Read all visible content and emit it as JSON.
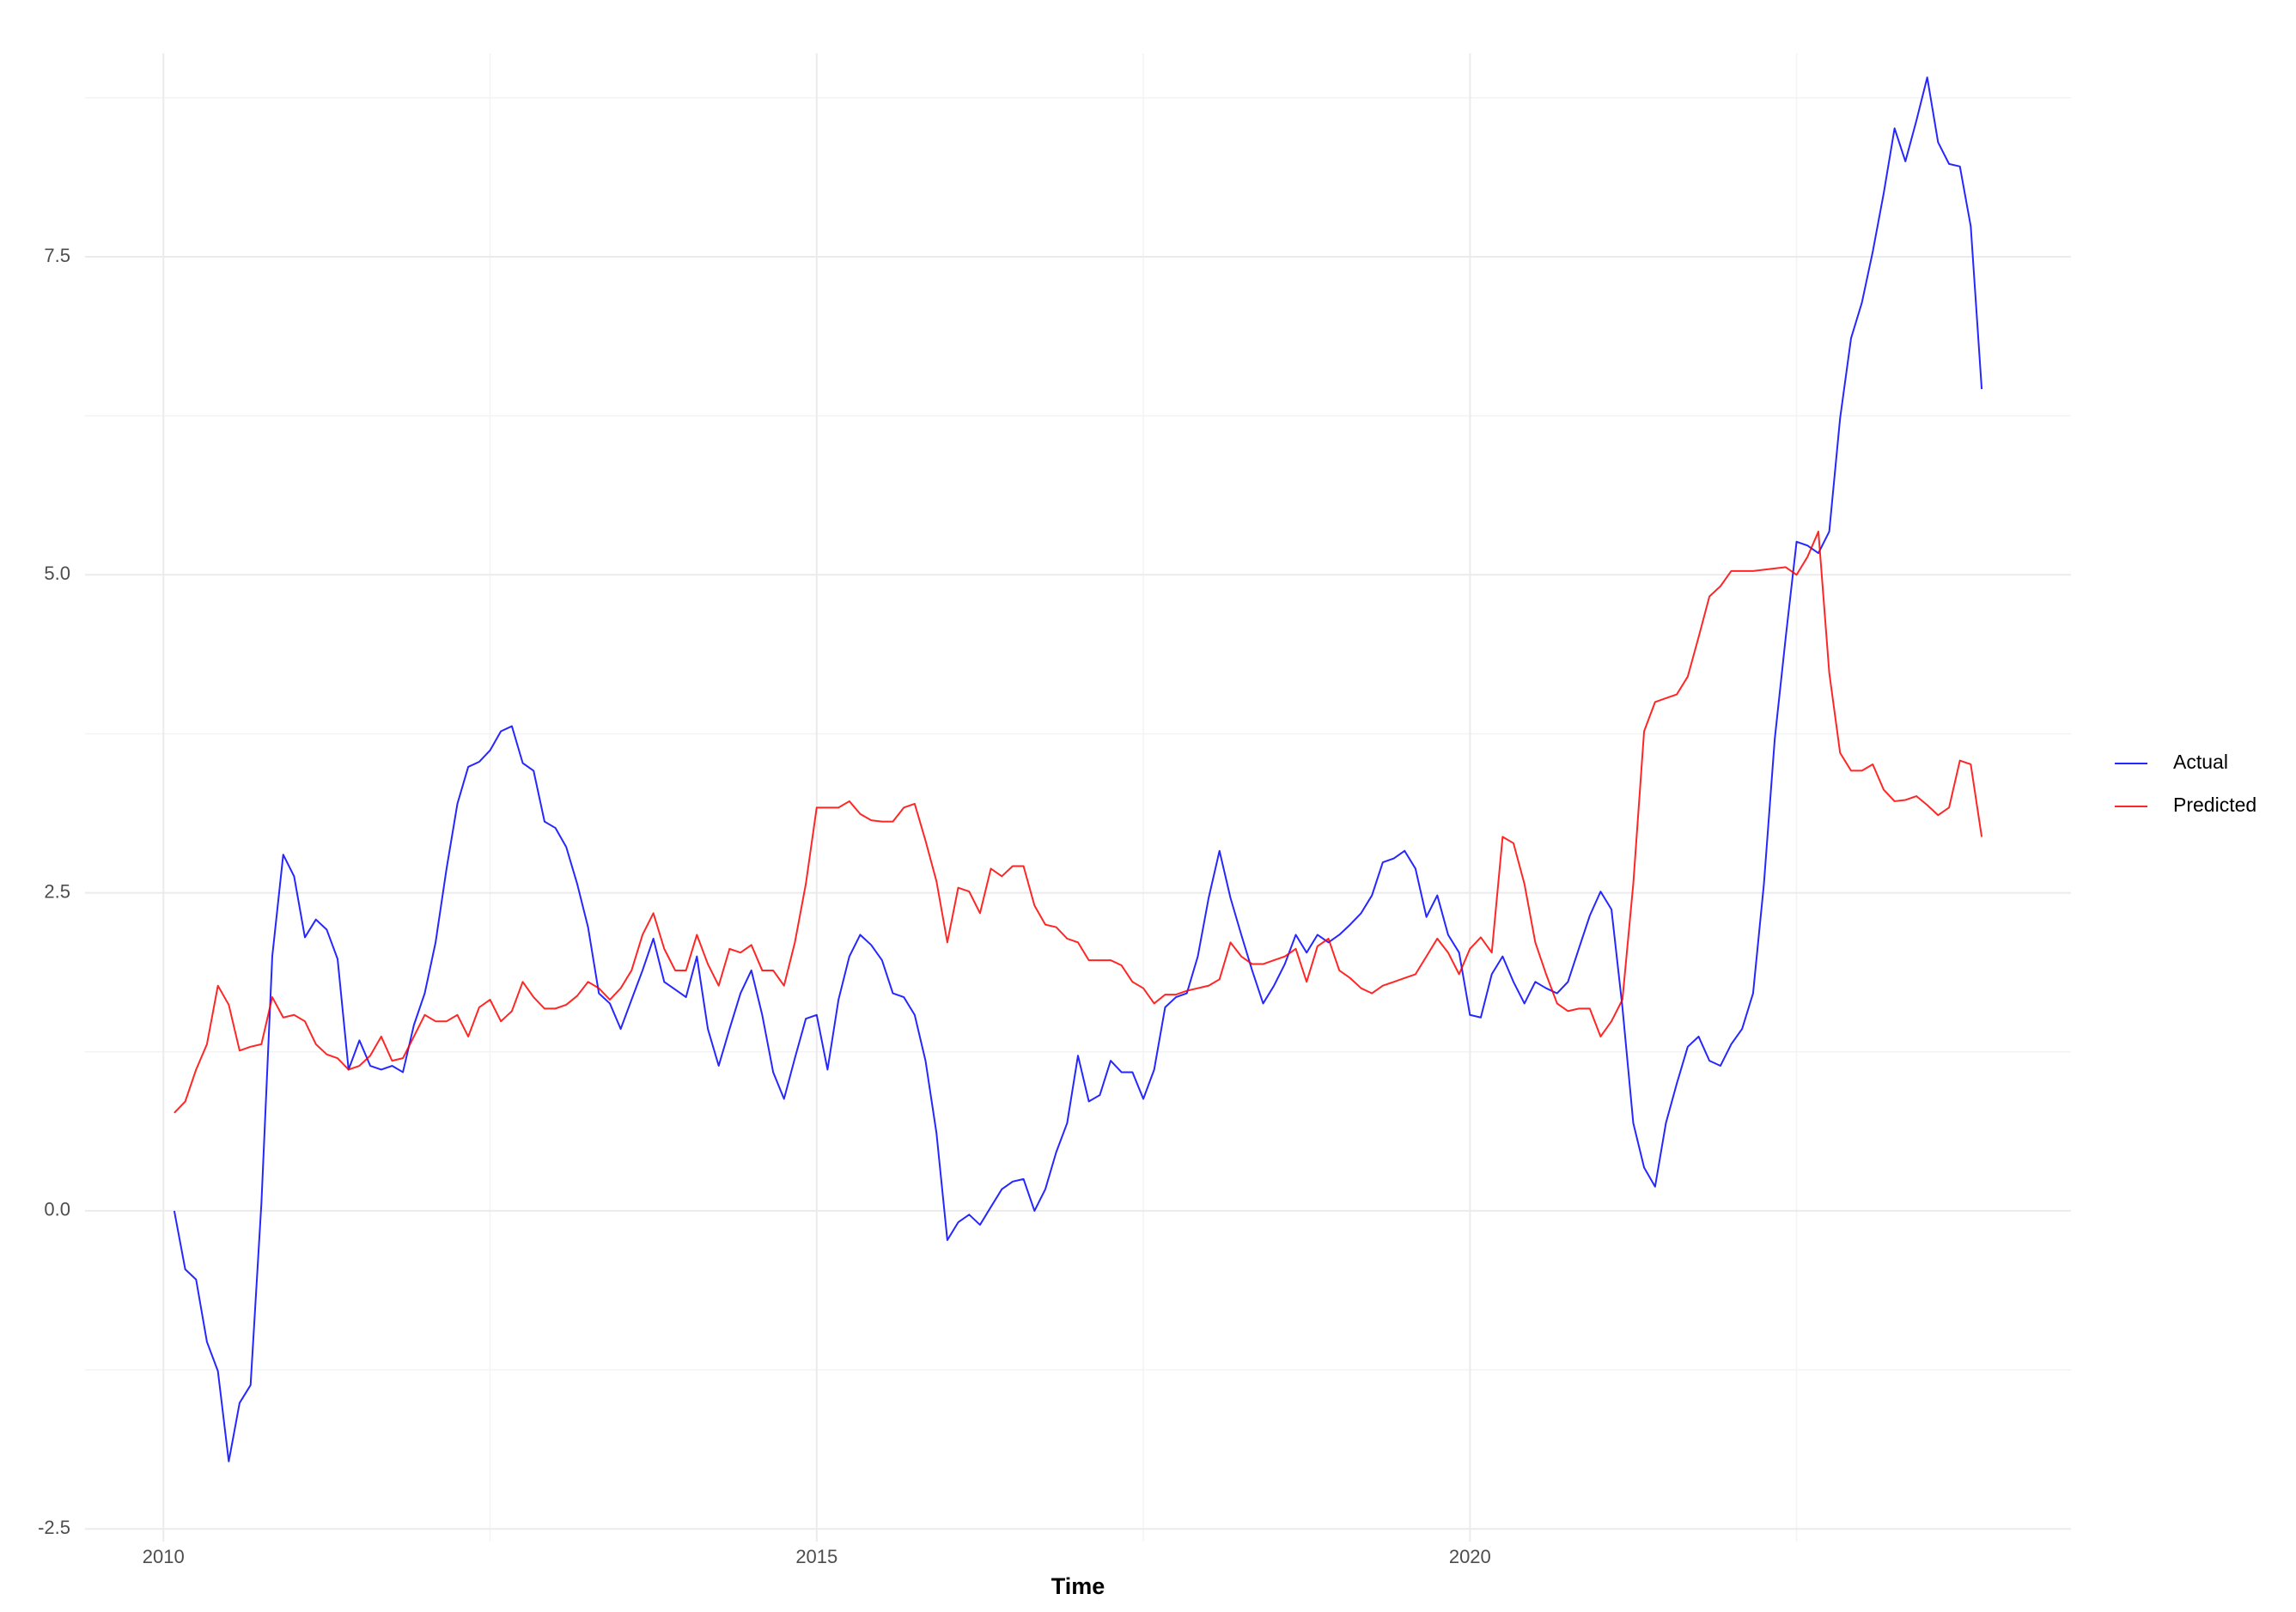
{
  "chart_data": {
    "type": "line",
    "x_label": "Time",
    "xlim": [
      2009.4,
      2024.6
    ],
    "ylim": [
      -2.6,
      9.1
    ],
    "xticks": [
      2010,
      2015,
      2020
    ],
    "yticks": [
      -2.5,
      {
        "value": 0,
        "label": "0.0"
      },
      2.5,
      {
        "value": 5,
        "label": "5.0"
      },
      7.5
    ],
    "x_minor_grid": [
      2012.5,
      2017.5,
      2022.5
    ],
    "y_minor_grid": [
      -1.25,
      1.25,
      3.75,
      6.25,
      8.75
    ],
    "grid": true,
    "legend": "right",
    "x": [
      2010.083,
      2010.167,
      2010.25,
      2010.333,
      2010.417,
      2010.5,
      2010.583,
      2010.667,
      2010.75,
      2010.833,
      2010.917,
      2011.0,
      2011.083,
      2011.167,
      2011.25,
      2011.333,
      2011.417,
      2011.5,
      2011.583,
      2011.667,
      2011.75,
      2011.833,
      2011.917,
      2012.0,
      2012.083,
      2012.167,
      2012.25,
      2012.333,
      2012.417,
      2012.5,
      2012.583,
      2012.667,
      2012.75,
      2012.833,
      2012.917,
      2013.0,
      2013.083,
      2013.167,
      2013.25,
      2013.333,
      2013.417,
      2013.5,
      2013.583,
      2013.667,
      2013.75,
      2013.833,
      2013.917,
      2014.0,
      2014.083,
      2014.167,
      2014.25,
      2014.333,
      2014.417,
      2014.5,
      2014.583,
      2014.667,
      2014.75,
      2014.833,
      2014.917,
      2015.0,
      2015.083,
      2015.167,
      2015.25,
      2015.333,
      2015.417,
      2015.5,
      2015.583,
      2015.667,
      2015.75,
      2015.833,
      2015.917,
      2016.0,
      2016.083,
      2016.167,
      2016.25,
      2016.333,
      2016.417,
      2016.5,
      2016.583,
      2016.667,
      2016.75,
      2016.833,
      2016.917,
      2017.0,
      2017.083,
      2017.167,
      2017.25,
      2017.333,
      2017.417,
      2017.5,
      2017.583,
      2017.667,
      2017.75,
      2017.833,
      2017.917,
      2018.0,
      2018.083,
      2018.167,
      2018.25,
      2018.333,
      2018.417,
      2018.5,
      2018.583,
      2018.667,
      2018.75,
      2018.833,
      2018.917,
      2019.0,
      2019.083,
      2019.167,
      2019.25,
      2019.333,
      2019.417,
      2019.5,
      2019.583,
      2019.667,
      2019.75,
      2019.833,
      2019.917,
      2020.0,
      2020.083,
      2020.167,
      2020.25,
      2020.333,
      2020.417,
      2020.5,
      2020.583,
      2020.667,
      2020.75,
      2020.833,
      2020.917,
      2021.0,
      2021.083,
      2021.167,
      2021.25,
      2021.333,
      2021.417,
      2021.5,
      2021.583,
      2021.667,
      2021.75,
      2021.833,
      2021.917,
      2022.0,
      2022.083,
      2022.167,
      2022.25,
      2022.333,
      2022.417,
      2022.5,
      2022.583,
      2022.667,
      2022.75,
      2022.833,
      2022.917,
      2023.0,
      2023.083,
      2023.167,
      2023.25,
      2023.333,
      2023.417,
      2023.5,
      2023.583,
      2023.667,
      2023.75,
      2023.833,
      2023.917
    ],
    "series": [
      {
        "name": "Actual",
        "color": "#0000ff",
        "values": [
          0.0,
          -0.46,
          -0.54,
          -1.03,
          -1.26,
          -1.97,
          -1.51,
          -1.37,
          0.06,
          2.0,
          2.8,
          2.63,
          2.15,
          2.29,
          2.21,
          1.98,
          1.11,
          1.34,
          1.14,
          1.11,
          1.14,
          1.09,
          1.46,
          1.71,
          2.11,
          2.69,
          3.2,
          3.49,
          3.53,
          3.62,
          3.77,
          3.81,
          3.52,
          3.46,
          3.06,
          3.01,
          2.86,
          2.57,
          2.23,
          1.71,
          1.63,
          1.43,
          1.66,
          1.89,
          2.14,
          1.8,
          1.74,
          1.68,
          2.0,
          1.43,
          1.14,
          1.43,
          1.71,
          1.89,
          1.54,
          1.09,
          0.88,
          1.2,
          1.51,
          1.54,
          1.11,
          1.66,
          2.0,
          2.17,
          2.09,
          1.97,
          1.71,
          1.68,
          1.54,
          1.18,
          0.61,
          -0.23,
          -0.09,
          -0.03,
          -0.11,
          0.03,
          0.17,
          0.23,
          0.25,
          0.0,
          0.17,
          0.46,
          0.69,
          1.22,
          0.86,
          0.91,
          1.18,
          1.09,
          1.09,
          0.88,
          1.11,
          1.6,
          1.68,
          1.71,
          2.0,
          2.46,
          2.83,
          2.46,
          2.17,
          1.89,
          1.63,
          1.77,
          1.94,
          2.17,
          2.03,
          2.17,
          2.11,
          2.17,
          2.25,
          2.34,
          2.48,
          2.74,
          2.77,
          2.83,
          2.69,
          2.31,
          2.48,
          2.17,
          2.03,
          1.54,
          1.52,
          1.86,
          2.0,
          1.8,
          1.63,
          1.8,
          1.75,
          1.71,
          1.8,
          2.06,
          2.32,
          2.51,
          2.37,
          1.6,
          0.69,
          0.34,
          0.19,
          0.69,
          1.0,
          1.29,
          1.37,
          1.18,
          1.14,
          1.31,
          1.43,
          1.71,
          2.57,
          3.71,
          4.51,
          5.26,
          5.23,
          5.17,
          5.34,
          6.23,
          6.86,
          7.14,
          7.54,
          8.0,
          8.51,
          8.25,
          8.57,
          8.91,
          8.4,
          8.23,
          8.21,
          7.74,
          6.46
        ]
      },
      {
        "name": "Predicted",
        "color": "#ff0000",
        "values": [
          0.77,
          0.86,
          1.11,
          1.31,
          1.77,
          1.62,
          1.26,
          1.29,
          1.31,
          1.68,
          1.52,
          1.54,
          1.49,
          1.31,
          1.23,
          1.2,
          1.11,
          1.14,
          1.22,
          1.37,
          1.18,
          1.2,
          1.37,
          1.54,
          1.49,
          1.49,
          1.54,
          1.37,
          1.6,
          1.66,
          1.49,
          1.57,
          1.8,
          1.68,
          1.59,
          1.59,
          1.62,
          1.69,
          1.8,
          1.75,
          1.66,
          1.75,
          1.89,
          2.17,
          2.34,
          2.06,
          1.89,
          1.89,
          2.17,
          1.94,
          1.77,
          2.06,
          2.03,
          2.09,
          1.89,
          1.89,
          1.77,
          2.11,
          2.57,
          3.17,
          3.17,
          3.17,
          3.22,
          3.12,
          3.07,
          3.06,
          3.06,
          3.17,
          3.2,
          2.91,
          2.59,
          2.11,
          2.54,
          2.51,
          2.34,
          2.69,
          2.63,
          2.71,
          2.71,
          2.4,
          2.25,
          2.23,
          2.14,
          2.11,
          1.97,
          1.97,
          1.97,
          1.93,
          1.8,
          1.75,
          1.63,
          1.7,
          1.7,
          1.73,
          1.75,
          1.77,
          1.82,
          2.11,
          2.0,
          1.94,
          1.94,
          1.97,
          2.0,
          2.06,
          1.8,
          2.08,
          2.14,
          1.89,
          1.83,
          1.75,
          1.71,
          1.77,
          1.8,
          1.83,
          1.86,
          2.0,
          2.14,
          2.03,
          1.86,
          2.06,
          2.15,
          2.03,
          2.94,
          2.89,
          2.57,
          2.11,
          1.86,
          1.63,
          1.57,
          1.59,
          1.59,
          1.37,
          1.49,
          1.66,
          2.57,
          3.77,
          4.0,
          4.03,
          4.06,
          4.2,
          4.51,
          4.83,
          4.91,
          5.03,
          5.03,
          5.03,
          5.04,
          5.05,
          5.06,
          5.0,
          5.14,
          5.34,
          4.23,
          3.6,
          3.46,
          3.46,
          3.51,
          3.31,
          3.22,
          3.23,
          3.26,
          3.19,
          3.11,
          3.17,
          3.54,
          3.51,
          2.94
        ]
      }
    ]
  }
}
